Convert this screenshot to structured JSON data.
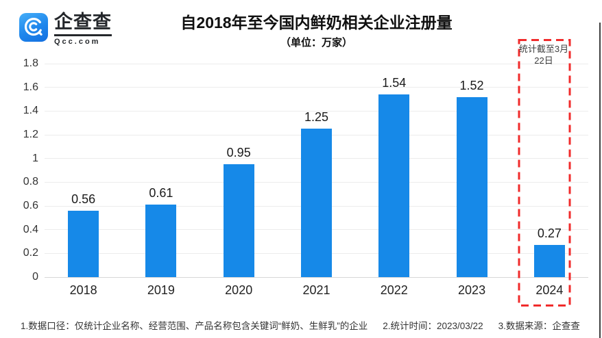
{
  "logo": {
    "name": "企查查",
    "domain": "Qcc.com"
  },
  "header": {
    "title": "自2018年至今国内鲜奶相关企业注册量",
    "subtitle": "（单位：万家）"
  },
  "annotation": {
    "text": "统计截至3月22日"
  },
  "footer": {
    "notes": [
      "1.数据口径：仅统计企业名称、经营范围、产品名称包含关键词“鲜奶、生鲜乳”的企业",
      "2.统计时间：2023/03/22",
      "3.数据来源：企查查"
    ]
  },
  "colors": {
    "bar": "#1689E8",
    "highlight_box": "#F02B2B",
    "logo_blue": "#1E86EC",
    "gridline": "#ECECEC",
    "text_dark": "#1A1A1A"
  },
  "chart_data": {
    "type": "bar",
    "categories": [
      "2018",
      "2019",
      "2020",
      "2021",
      "2022",
      "2023",
      "2024"
    ],
    "values": [
      0.56,
      0.61,
      0.95,
      1.25,
      1.54,
      1.52,
      0.27
    ],
    "title": "自2018年至今国内鲜奶相关企业注册量",
    "subtitle": "（单位：万家）",
    "xlabel": "",
    "ylabel": "",
    "unit": "万家",
    "ylim": [
      0,
      1.8
    ],
    "ytick_step": 0.2,
    "grid": true,
    "legend": false,
    "bar_color": "#1689E8",
    "highlight": {
      "category": "2024",
      "note": "统计截至3月22日"
    }
  }
}
